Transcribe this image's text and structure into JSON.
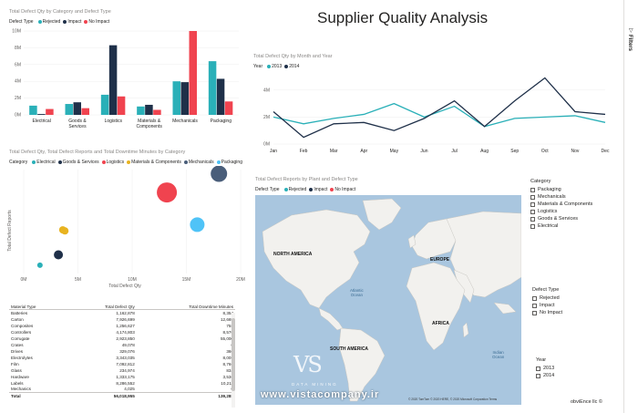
{
  "report": {
    "title": "Supplier Quality Analysis",
    "filters_label": "Filters"
  },
  "visual1": {
    "title": "Total Defect Qty by Category and Defect Type",
    "legend_title": "Defect Type",
    "legend": [
      "Rejected",
      "Impact",
      "No Impact"
    ]
  },
  "visual2": {
    "title": "Total Defect Qty by Month and Year",
    "legend_title": "Year",
    "legend": [
      "2013",
      "2014"
    ]
  },
  "visual3": {
    "title": "Total Defect Qty, Total Defect Reports and Total Downtime Minutes by Category",
    "legend_title": "Category",
    "legend": [
      "Electrical",
      "Goods & Services",
      "Logistics",
      "Materials & Components",
      "Mechanicals",
      "Packaging"
    ]
  },
  "visual4": {
    "title": "Total Defect Reports by Plant and Defect Type",
    "legend_title": "Defect Type",
    "legend": [
      "Rejected",
      "Impact",
      "No Impact"
    ],
    "labels": {
      "north_america": "NORTH AMERICA",
      "europe": "EUROPE",
      "africa": "AFRICA",
      "south_america": "SOUTH AMERICA",
      "atlantic": "Atlantic\nOcean",
      "indian": "Indian\nOcean"
    },
    "attribution": "© 2020 TomTom © 2020 HERE, © 2020 Microsoft Corporation  Terms"
  },
  "table": {
    "headers": [
      "Material Type",
      "Total Defect Qty",
      "Total Downtime Minutes"
    ],
    "rows": [
      [
        "Batteries",
        "1,162,878",
        "8,354"
      ],
      [
        "Carton",
        "7,926,699",
        "12,669"
      ],
      [
        "Composites",
        "1,256,627",
        "758"
      ],
      [
        "Controllers",
        "4,174,803",
        "8,570"
      ],
      [
        "Corrugate",
        "2,923,850",
        "55,006"
      ],
      [
        "Crates",
        "49,078",
        "0"
      ],
      [
        "Drives",
        "329,076",
        "360"
      ],
      [
        "Electrolytes",
        "3,343,035",
        "8,005"
      ],
      [
        "Film",
        "7,092,812",
        "8,766"
      ],
      [
        "Glass",
        "234,974",
        "834"
      ],
      [
        "Hardware",
        "1,333,175",
        "3,536"
      ],
      [
        "Labels",
        "8,286,552",
        "10,211"
      ],
      [
        "Mechanics",
        "4,025",
        "0"
      ]
    ],
    "total": [
      "Total",
      "56,018,955",
      "139,288"
    ]
  },
  "slicers": {
    "category": {
      "title": "Category",
      "items": [
        "Packaging",
        "Mechanicals",
        "Materials & Components",
        "Logistics",
        "Goods & Services",
        "Electrical"
      ]
    },
    "defect_type": {
      "title": "Defect Type",
      "items": [
        "Rejected",
        "Impact",
        "No Impact"
      ]
    },
    "year": {
      "title": "Year",
      "items": [
        "2013",
        "2014"
      ]
    }
  },
  "branding": {
    "vs_logo": "VS",
    "watermark_sub": "DATA MINING",
    "watermark_url": "www.vistacompany.ir",
    "obviEnce": "obviEnce llc ©"
  },
  "colors": {
    "teal": "#2ab0b8",
    "navy": "#1f3049",
    "red": "#f0434f",
    "yellow": "#e8b320",
    "light_blue": "#4fc3f7",
    "blue_dark": "#4a5e7a"
  },
  "chart_data": [
    {
      "type": "bar",
      "title": "Total Defect Qty by Category and Defect Type",
      "categories": [
        "Electrical",
        "Goods & Services",
        "Logistics",
        "Materials & Components",
        "Mechanicals",
        "Packaging"
      ],
      "series": [
        {
          "name": "Rejected",
          "values": [
            1.1,
            1.3,
            2.4,
            1.0,
            4.0,
            6.4
          ]
        },
        {
          "name": "Impact",
          "values": [
            0.1,
            1.5,
            8.3,
            1.2,
            3.9,
            4.3
          ]
        },
        {
          "name": "No Impact",
          "values": [
            0.7,
            0.8,
            2.2,
            0.6,
            10.0,
            1.6
          ]
        }
      ],
      "yticks": [
        "0M",
        "2M",
        "4M",
        "6M",
        "8M",
        "10M"
      ],
      "ylim": [
        0,
        10
      ]
    },
    {
      "type": "line",
      "title": "Total Defect Qty by Month and Year",
      "x": [
        "Jan",
        "Feb",
        "Mar",
        "Apr",
        "May",
        "Jun",
        "Jul",
        "Aug",
        "Sep",
        "Oct",
        "Nov",
        "Dec"
      ],
      "series": [
        {
          "name": "2013",
          "values": [
            2.0,
            1.5,
            1.9,
            2.2,
            3.0,
            2.0,
            2.8,
            1.3,
            1.9,
            2.0,
            2.1,
            1.6
          ]
        },
        {
          "name": "2014",
          "values": [
            2.4,
            0.5,
            1.5,
            1.6,
            1.0,
            1.9,
            3.2,
            1.3,
            3.2,
            4.9,
            2.4,
            2.2
          ]
        }
      ],
      "yticks": [
        "0M",
        "2M",
        "4M"
      ],
      "ylim": [
        0,
        5
      ]
    },
    {
      "type": "scatter",
      "title": "Total Defect Qty, Total Defect Reports and Total Downtime Minutes by Category",
      "xlabel": "Total Defect Qty",
      "ylabel": "Total Defect Reports",
      "xticks": [
        "0M",
        "5M",
        "10M",
        "15M",
        "20M"
      ],
      "xlim": [
        0,
        20
      ],
      "points": [
        {
          "name": "Electrical",
          "x": 1.5,
          "y": 0.8,
          "size": 3
        },
        {
          "name": "Goods & Services",
          "x": 3.2,
          "y": 1.8,
          "size": 5
        },
        {
          "name": "Logistics",
          "x": 3.8,
          "y": 4.1,
          "size": 4
        },
        {
          "name": "Materials & Components",
          "x": 3.6,
          "y": 4.2,
          "size": 4
        },
        {
          "name": "Mechanicals",
          "x": 13.2,
          "y": 7.8,
          "size": 11
        },
        {
          "name": "Packaging",
          "x": 18.0,
          "y": 9.6,
          "size": 9
        },
        {
          "name": "Packaging",
          "x": 16.0,
          "y": 4.7,
          "size": 8
        }
      ]
    }
  ]
}
